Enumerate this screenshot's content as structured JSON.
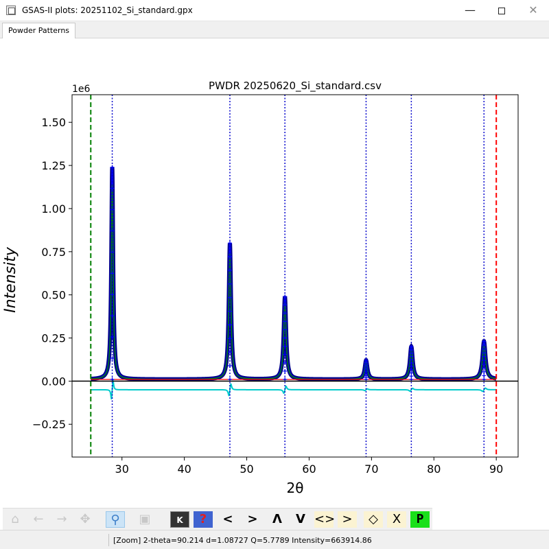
{
  "window": {
    "title": "GSAS-II plots: 20251102_Si_standard.gpx",
    "min_glyph": "—",
    "close_glyph": "✕"
  },
  "tabs": [
    {
      "label": "Powder Patterns"
    }
  ],
  "chart_data": {
    "type": "line",
    "title": "PWDR 20250620_Si_standard.csv",
    "xlabel": "2θ",
    "ylabel": "Intensity",
    "y_multiplier": "1e6",
    "xlim": [
      22,
      93.5
    ],
    "ylim": [
      -0.44,
      1.66
    ],
    "xticks": [
      30,
      40,
      50,
      60,
      70,
      80,
      90
    ],
    "yticks": [
      -0.25,
      0.0,
      0.25,
      0.5,
      0.75,
      1.0,
      1.25,
      1.5
    ],
    "ytick_labels": [
      "−0.25",
      "0.00",
      "0.25",
      "0.50",
      "0.75",
      "1.00",
      "1.25",
      "1.50"
    ],
    "limit_lines": [
      {
        "x": 25.0,
        "color": "#008000",
        "style": "dashed"
      },
      {
        "x": 90.0,
        "color": "#ff0000",
        "style": "dashed"
      }
    ],
    "reflection_lines": {
      "color": "#0000cc",
      "style": "dotted",
      "x": [
        28.44,
        47.3,
        56.12,
        69.13,
        76.38,
        88.03
      ]
    },
    "peaks": [
      {
        "x": 28.44,
        "y": 1.24
      },
      {
        "x": 47.3,
        "y": 0.8
      },
      {
        "x": 56.12,
        "y": 0.49
      },
      {
        "x": 69.13,
        "y": 0.12
      },
      {
        "x": 76.38,
        "y": 0.2
      },
      {
        "x": 88.03,
        "y": 0.23
      }
    ],
    "background_level": 0.01,
    "difference_offset": -0.05,
    "zero_line": 0.0,
    "colors": {
      "observed": "#0000ff",
      "calculated": "#008000",
      "background": "#ff0000",
      "difference": "#00cccc",
      "zero": "#000000"
    }
  },
  "toolbar": {
    "buttons": [
      {
        "name": "home-icon",
        "glyph": "⌂",
        "state": "disabled"
      },
      {
        "name": "back-icon",
        "glyph": "←",
        "state": "disabled"
      },
      {
        "name": "forward-icon",
        "glyph": "→",
        "state": "disabled"
      },
      {
        "name": "pan-icon",
        "glyph": "✥",
        "state": "disabled"
      },
      {
        "name": "zoom-icon",
        "glyph": "⚲",
        "state": "active"
      },
      {
        "name": "save-icon",
        "glyph": "▣",
        "state": "disabled"
      },
      {
        "name": "key-icon",
        "glyph": "K",
        "state": "dk"
      },
      {
        "name": "help-icon",
        "glyph": "?",
        "state": "blue"
      },
      {
        "name": "shift-left-icon",
        "glyph": "<",
        "state": "dark"
      },
      {
        "name": "shift-right-icon",
        "glyph": ">",
        "state": "dark"
      },
      {
        "name": "shift-up-icon",
        "glyph": "Λ",
        "state": "dark"
      },
      {
        "name": "shift-down-icon",
        "glyph": "V",
        "state": "dark"
      },
      {
        "name": "expand-x-icon",
        "glyph": "<>",
        "state": "cream"
      },
      {
        "name": "contract-x-icon",
        "glyph": "><",
        "state": "cream"
      },
      {
        "name": "expand-y-icon",
        "glyph": "◇",
        "state": "cream"
      },
      {
        "name": "contract-y-icon",
        "glyph": "X",
        "state": "cream"
      },
      {
        "name": "publish-icon",
        "glyph": "P",
        "state": "green"
      }
    ]
  },
  "status": {
    "text": "[Zoom] 2-theta=90.214 d=1.08727 Q=5.7789 Intensity=663914.86"
  }
}
